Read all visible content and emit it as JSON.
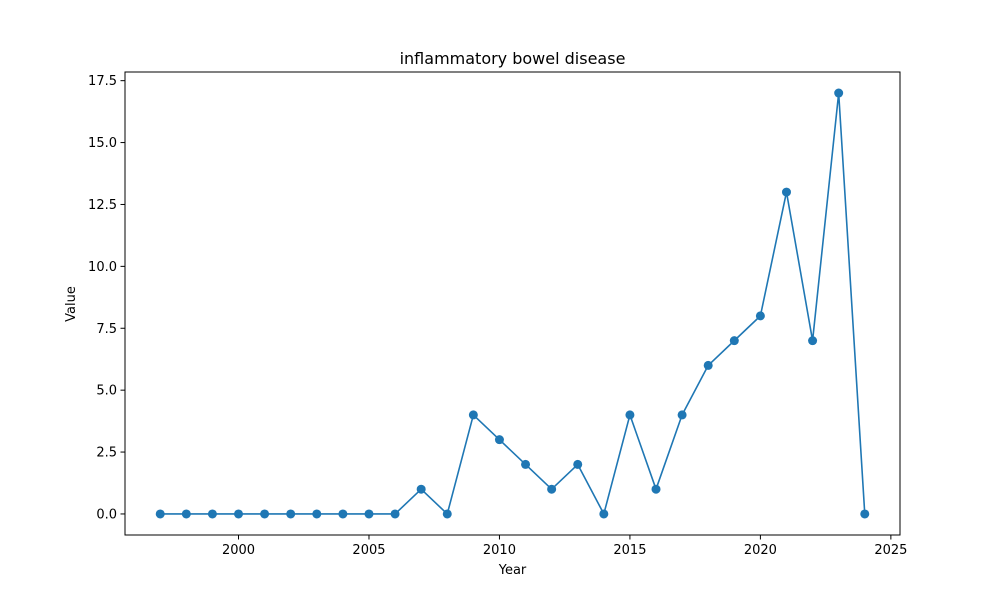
{
  "chart_data": {
    "type": "line",
    "title": "inflammatory bowel disease",
    "xlabel": "Year",
    "ylabel": "Value",
    "xlim": [
      1995.65,
      2025.35
    ],
    "ylim": [
      -0.85,
      17.85
    ],
    "x_ticks": [
      2000,
      2005,
      2010,
      2015,
      2020,
      2025
    ],
    "x_tick_labels": [
      "2000",
      "2005",
      "2010",
      "2015",
      "2020",
      "2025"
    ],
    "y_ticks": [
      0,
      2.5,
      5,
      7.5,
      10,
      12.5,
      15,
      17.5
    ],
    "y_tick_labels": [
      "0.0",
      "2.5",
      "5.0",
      "7.5",
      "10.0",
      "12.5",
      "15.0",
      "17.5"
    ],
    "grid": false,
    "line_color": "#1f77b4",
    "marker": "circle",
    "series": [
      {
        "x": [
          1997,
          1998,
          1999,
          2000,
          2001,
          2002,
          2003,
          2004,
          2005,
          2006,
          2007,
          2008,
          2009,
          2010,
          2011,
          2012,
          2013,
          2014,
          2015,
          2016,
          2017,
          2018,
          2019,
          2020,
          2021,
          2022,
          2023,
          2024
        ],
        "values": [
          0,
          0,
          0,
          0,
          0,
          0,
          0,
          0,
          0,
          0,
          1,
          0,
          4,
          3,
          2,
          1,
          2,
          0,
          4,
          1,
          4,
          6,
          7,
          8,
          13,
          7,
          17,
          0
        ]
      }
    ]
  }
}
